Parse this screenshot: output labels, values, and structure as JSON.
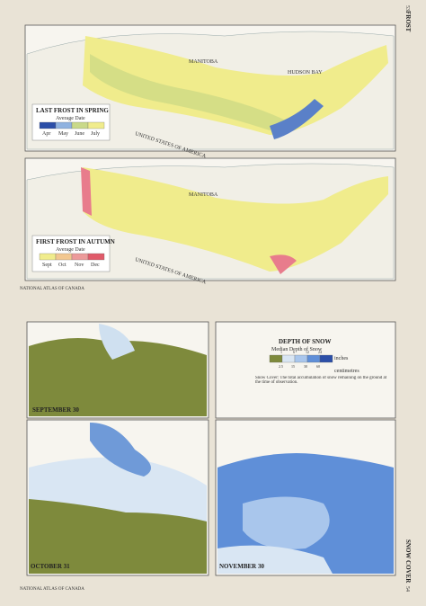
{
  "page": {
    "section_top": "FROST",
    "page_top": "53",
    "section_bottom": "SNOW COVER",
    "page_bottom": "54",
    "credit_top": "NATIONAL ATLAS OF CANADA",
    "credit_bottom": "NATIONAL ATLAS OF CANADA"
  },
  "maps": [
    {
      "title": "LAST FROST IN SPRING",
      "legend_title": "Average Date",
      "legend": [
        "Apr",
        "May",
        "June",
        "July"
      ],
      "labels": [
        "MANITOBA",
        "HUDSON BAY",
        "UNITED STATES OF AMERICA"
      ]
    },
    {
      "title": "FIRST FROST IN AUTUMN",
      "legend_title": "Average Date",
      "legend": [
        "Sept",
        "Oct",
        "Nov",
        "Dec"
      ],
      "labels": [
        "MANITOBA",
        "UNITED STATES OF AMERICA"
      ]
    }
  ],
  "snow": {
    "title": "DEPTH OF SNOW",
    "legend_title": "Median Depth of Snow",
    "unit_top": "inches",
    "unit_bottom": "centimetres",
    "inches": [
      "1",
      "6",
      "12",
      "24"
    ],
    "centimetres": [
      "2.5",
      "15",
      "30",
      "60"
    ],
    "note": "Snow Cover: The total accumulation of snow remaining on the ground at the time of observation.",
    "panels": [
      "SEPTEMBER 30",
      "OCTOBER 31",
      "NOVEMBER 30"
    ]
  }
}
